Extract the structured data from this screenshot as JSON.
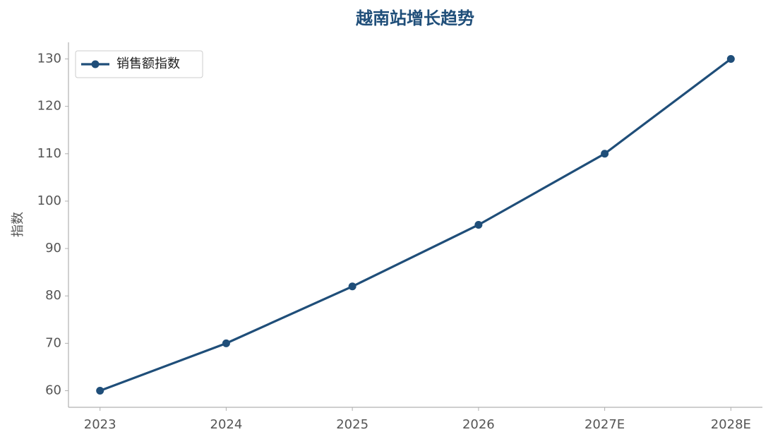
{
  "chart_data": {
    "type": "line",
    "title": "越南站增长趋势",
    "ylabel": "指数",
    "categories": [
      "2023",
      "2024",
      "2025",
      "2026",
      "2027E",
      "2028E"
    ],
    "series": [
      {
        "name": "销售额指数",
        "color": "#1f4e79",
        "values": [
          60,
          70,
          82,
          95,
          110,
          130
        ]
      }
    ],
    "ylim": [
      56.5,
      133.5
    ],
    "yticks": [
      60,
      70,
      80,
      90,
      100,
      110,
      120,
      130
    ],
    "grid": false,
    "legend": "upper left"
  }
}
